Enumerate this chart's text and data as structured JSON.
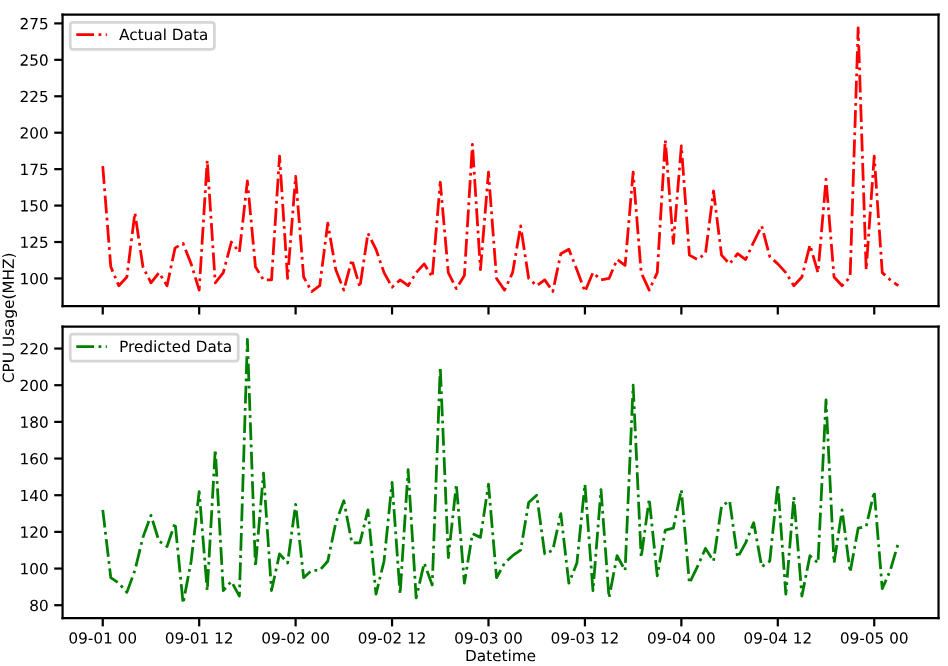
{
  "chart_data": [
    {
      "type": "line",
      "line_style": "dashdot",
      "legend": "top left",
      "tick_labels": "y",
      "grid": false,
      "ylim": [
        81,
        281
      ],
      "yticks": [
        100,
        125,
        150,
        175,
        200,
        225,
        250,
        275
      ],
      "categories": [
        null,
        null,
        null,
        null,
        null,
        null,
        null,
        null,
        null,
        null,
        null,
        null,
        null,
        null,
        null,
        null,
        null,
        null,
        null,
        null,
        null,
        null,
        null,
        null,
        null,
        null,
        null,
        null,
        null,
        null,
        null,
        null,
        null,
        null,
        null,
        null,
        null,
        null,
        null,
        null,
        null,
        null,
        null,
        null,
        null,
        null,
        null,
        null,
        null,
        null,
        null,
        null,
        null,
        null,
        null,
        null,
        null,
        null,
        null,
        null,
        null,
        null,
        null,
        null,
        null,
        null,
        null,
        null,
        null,
        null,
        null,
        null,
        null,
        null,
        null,
        null,
        null,
        null,
        null,
        null,
        null,
        null,
        null,
        null,
        null,
        null,
        null,
        null,
        null,
        null,
        null,
        null,
        null,
        null,
        null,
        null,
        null,
        null,
        null,
        null
      ],
      "series": [
        {
          "name": "Actual Data",
          "color": "#ff0000",
          "values": [
            177,
            108,
            95,
            101,
            145,
            108,
            97,
            104,
            95,
            121,
            124,
            110,
            92,
            181,
            97,
            104,
            125,
            118,
            167,
            108,
            99,
            99,
            184,
            100,
            170,
            101,
            91,
            95,
            138,
            106,
            92,
            113,
            94,
            131,
            120,
            104,
            94,
            99,
            95,
            104,
            110,
            101,
            166,
            104,
            93,
            102,
            192,
            106,
            173,
            100,
            92,
            104,
            136,
            100,
            95,
            99,
            91,
            117,
            120,
            106,
            91,
            104,
            99,
            100,
            113,
            109,
            173,
            104,
            92,
            104,
            195,
            124,
            191,
            116,
            113,
            117,
            160,
            116,
            110,
            117,
            113,
            125,
            136,
            115,
            110,
            104,
            95,
            101,
            123,
            104,
            168,
            101,
            95,
            101,
            272,
            106,
            184,
            104,
            99,
            95
          ]
        }
      ]
    },
    {
      "type": "line",
      "line_style": "dashdot",
      "legend": "top left",
      "grid": false,
      "xlabel": "Datetime",
      "ylabel": "CPU Usage(MHZ)",
      "ylim": [
        73,
        232
      ],
      "yticks": [
        80,
        100,
        120,
        140,
        160,
        180,
        200,
        220
      ],
      "categories": [
        "09-01 00",
        null,
        null,
        null,
        null,
        null,
        null,
        null,
        null,
        null,
        null,
        null,
        "09-01 12",
        null,
        null,
        null,
        null,
        null,
        null,
        null,
        null,
        null,
        null,
        null,
        "09-02 00",
        null,
        null,
        null,
        null,
        null,
        null,
        null,
        null,
        null,
        null,
        null,
        "09-02 12",
        null,
        null,
        null,
        null,
        null,
        null,
        null,
        null,
        null,
        null,
        null,
        "09-03 00",
        null,
        null,
        null,
        null,
        null,
        null,
        null,
        null,
        null,
        null,
        null,
        "09-03 12",
        null,
        null,
        null,
        null,
        null,
        null,
        null,
        null,
        null,
        null,
        null,
        "09-04 00",
        null,
        null,
        null,
        null,
        null,
        null,
        null,
        null,
        null,
        null,
        null,
        "09-04 12",
        null,
        null,
        null,
        null,
        null,
        null,
        null,
        null,
        null,
        null,
        null,
        "09-05 00",
        null,
        null,
        null
      ],
      "series": [
        {
          "name": "Predicted Data",
          "color": "#008000",
          "values": [
            132,
            95,
            92,
            87,
            99,
            117,
            129,
            115,
            112,
            125,
            81,
            104,
            142,
            88,
            165,
            88,
            93,
            85,
            225,
            101,
            152,
            88,
            108,
            103,
            135,
            95,
            99,
            99,
            104,
            125,
            137,
            114,
            114,
            132,
            86,
            104,
            147,
            86,
            154,
            84,
            103,
            91,
            210,
            106,
            146,
            92,
            119,
            117,
            146,
            95,
            103,
            107,
            110,
            136,
            140,
            108,
            110,
            130,
            92,
            103,
            146,
            88,
            143,
            84,
            107,
            99,
            200,
            106,
            138,
            96,
            121,
            122,
            143,
            92,
            101,
            111,
            104,
            134,
            137,
            106,
            114,
            125,
            101,
            104,
            146,
            86,
            139,
            85,
            107,
            103,
            192,
            103,
            132,
            98,
            122,
            123,
            142,
            89,
            99,
            114
          ]
        }
      ]
    }
  ]
}
